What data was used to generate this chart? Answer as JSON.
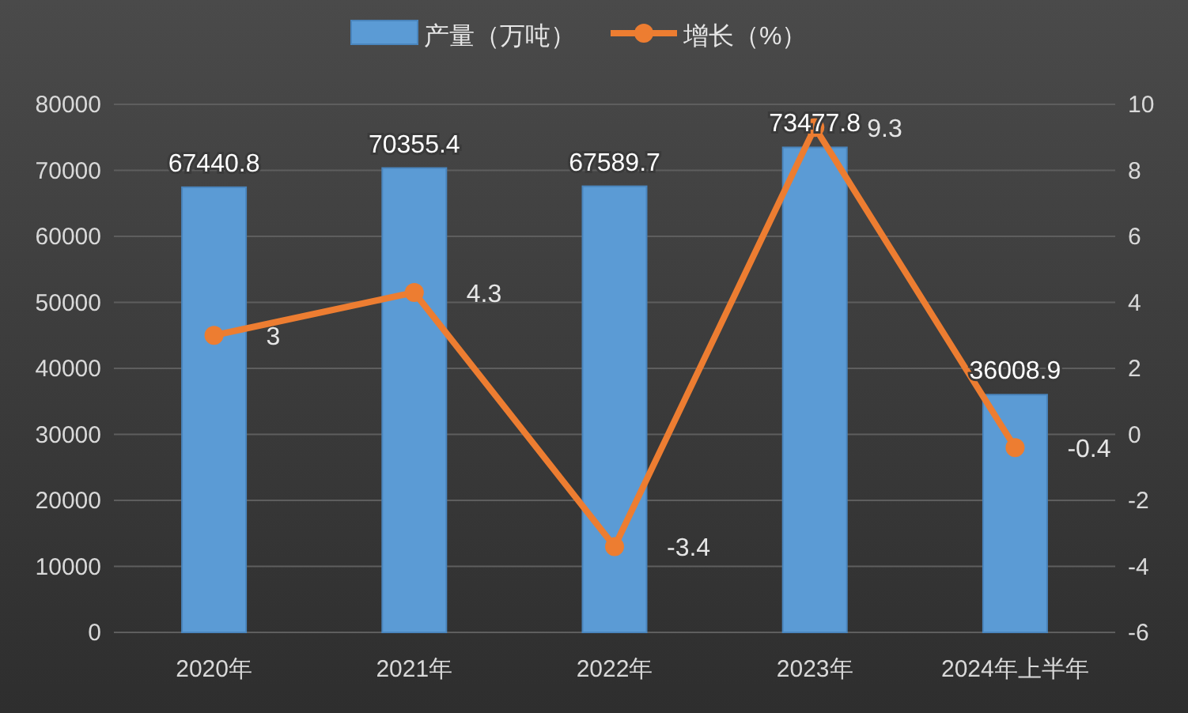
{
  "chart_data": {
    "type": "bar",
    "categories": [
      "2020年",
      "2021年",
      "2022年",
      "2023年",
      "2024年上半年"
    ],
    "series": [
      {
        "name": "产量（万吨）",
        "color": "#5b9bd5",
        "values": [
          67440.8,
          70355.4,
          67589.7,
          73477.8,
          36008.9
        ]
      },
      {
        "name": "增长（%）",
        "type": "line",
        "axis": "y2",
        "color": "#ed7d31",
        "values": [
          3,
          4.3,
          -3.4,
          9.3,
          -0.4
        ]
      }
    ],
    "ylim": [
      0,
      80000
    ],
    "yticks": [
      0,
      10000,
      20000,
      30000,
      40000,
      50000,
      60000,
      70000,
      80000
    ],
    "y2lim": [
      -6,
      10
    ],
    "y2ticks": [
      -6,
      -4,
      -2,
      0,
      2,
      4,
      6,
      8,
      10
    ],
    "data_labels": true,
    "grid": "y",
    "legend": "top",
    "marker": "circle"
  }
}
